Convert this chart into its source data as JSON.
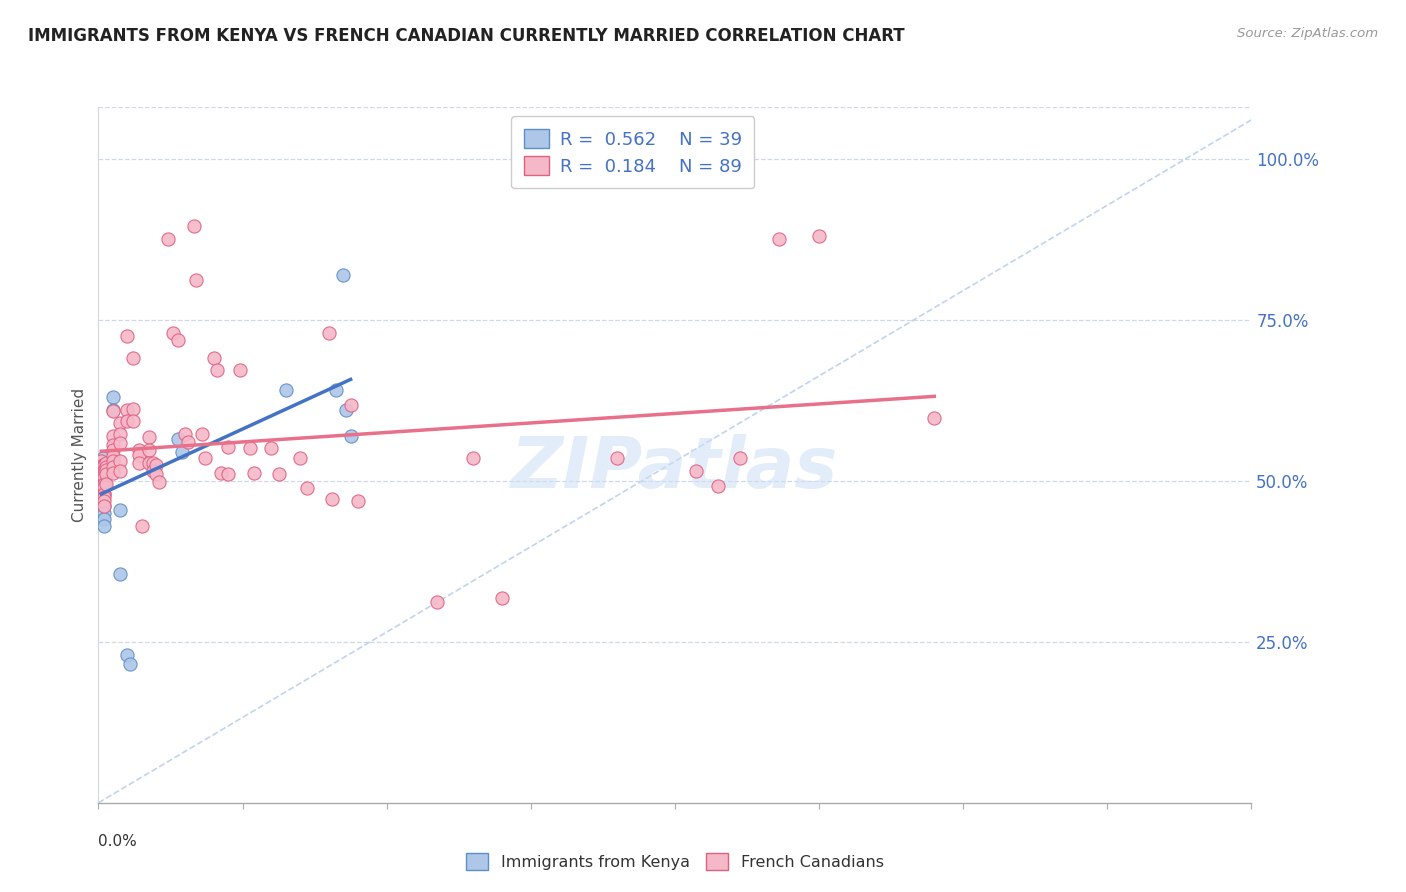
{
  "title": "IMMIGRANTS FROM KENYA VS FRENCH CANADIAN CURRENTLY MARRIED CORRELATION CHART",
  "source": "Source: ZipAtlas.com",
  "ylabel": "Currently Married",
  "ytick_labels": [
    "25.0%",
    "50.0%",
    "75.0%",
    "100.0%"
  ],
  "ytick_values": [
    0.25,
    0.5,
    0.75,
    1.0
  ],
  "xlim": [
    0.0,
    0.8
  ],
  "ylim": [
    0.0,
    1.08
  ],
  "kenya_color": "#aec6e8",
  "kenya_edge_color": "#5b8fc9",
  "french_color": "#f5b8c8",
  "french_edge_color": "#e06080",
  "kenya_line_color": "#4472c4",
  "french_line_color": "#e8708a",
  "diag_line_color": "#b8d0ec",
  "grid_color": "#d0d8e8",
  "background_color": "#ffffff",
  "watermark": "ZIPatlas",
  "bottom_legend_labels": [
    "Immigrants from Kenya",
    "French Canadians"
  ],
  "kenya_scatter": [
    [
      0.002,
      0.525
    ],
    [
      0.002,
      0.515
    ],
    [
      0.003,
      0.535
    ],
    [
      0.003,
      0.525
    ],
    [
      0.003,
      0.52
    ],
    [
      0.003,
      0.515
    ],
    [
      0.003,
      0.51
    ],
    [
      0.003,
      0.505
    ],
    [
      0.003,
      0.5
    ],
    [
      0.003,
      0.495
    ],
    [
      0.003,
      0.49
    ],
    [
      0.003,
      0.48
    ],
    [
      0.003,
      0.475
    ],
    [
      0.003,
      0.465
    ],
    [
      0.004,
      0.52
    ],
    [
      0.004,
      0.51
    ],
    [
      0.004,
      0.505
    ],
    [
      0.004,
      0.5
    ],
    [
      0.004,
      0.49
    ],
    [
      0.004,
      0.48
    ],
    [
      0.004,
      0.46
    ],
    [
      0.004,
      0.45
    ],
    [
      0.004,
      0.44
    ],
    [
      0.004,
      0.43
    ],
    [
      0.005,
      0.52
    ],
    [
      0.005,
      0.51
    ],
    [
      0.01,
      0.63
    ],
    [
      0.01,
      0.61
    ],
    [
      0.015,
      0.455
    ],
    [
      0.015,
      0.355
    ],
    [
      0.02,
      0.23
    ],
    [
      0.022,
      0.215
    ],
    [
      0.055,
      0.565
    ],
    [
      0.058,
      0.545
    ],
    [
      0.13,
      0.64
    ],
    [
      0.165,
      0.64
    ],
    [
      0.17,
      0.82
    ],
    [
      0.172,
      0.61
    ],
    [
      0.175,
      0.57
    ]
  ],
  "french_scatter": [
    [
      0.002,
      0.53
    ],
    [
      0.002,
      0.52
    ],
    [
      0.002,
      0.51
    ],
    [
      0.003,
      0.525
    ],
    [
      0.003,
      0.515
    ],
    [
      0.003,
      0.505
    ],
    [
      0.003,
      0.5
    ],
    [
      0.003,
      0.495
    ],
    [
      0.003,
      0.49
    ],
    [
      0.003,
      0.48
    ],
    [
      0.004,
      0.525
    ],
    [
      0.004,
      0.515
    ],
    [
      0.004,
      0.51
    ],
    [
      0.004,
      0.505
    ],
    [
      0.004,
      0.495
    ],
    [
      0.004,
      0.49
    ],
    [
      0.004,
      0.48
    ],
    [
      0.004,
      0.475
    ],
    [
      0.004,
      0.468
    ],
    [
      0.004,
      0.46
    ],
    [
      0.005,
      0.528
    ],
    [
      0.005,
      0.522
    ],
    [
      0.005,
      0.516
    ],
    [
      0.005,
      0.51
    ],
    [
      0.005,
      0.495
    ],
    [
      0.01,
      0.608
    ],
    [
      0.01,
      0.57
    ],
    [
      0.01,
      0.555
    ],
    [
      0.01,
      0.548
    ],
    [
      0.01,
      0.538
    ],
    [
      0.01,
      0.53
    ],
    [
      0.01,
      0.522
    ],
    [
      0.01,
      0.512
    ],
    [
      0.015,
      0.59
    ],
    [
      0.015,
      0.572
    ],
    [
      0.015,
      0.558
    ],
    [
      0.015,
      0.53
    ],
    [
      0.015,
      0.515
    ],
    [
      0.02,
      0.725
    ],
    [
      0.02,
      0.61
    ],
    [
      0.02,
      0.592
    ],
    [
      0.024,
      0.69
    ],
    [
      0.024,
      0.612
    ],
    [
      0.024,
      0.592
    ],
    [
      0.028,
      0.548
    ],
    [
      0.028,
      0.54
    ],
    [
      0.028,
      0.528
    ],
    [
      0.03,
      0.43
    ],
    [
      0.035,
      0.568
    ],
    [
      0.035,
      0.548
    ],
    [
      0.035,
      0.528
    ],
    [
      0.038,
      0.528
    ],
    [
      0.038,
      0.515
    ],
    [
      0.04,
      0.524
    ],
    [
      0.04,
      0.51
    ],
    [
      0.042,
      0.498
    ],
    [
      0.048,
      0.875
    ],
    [
      0.052,
      0.73
    ],
    [
      0.055,
      0.718
    ],
    [
      0.06,
      0.572
    ],
    [
      0.062,
      0.56
    ],
    [
      0.066,
      0.895
    ],
    [
      0.068,
      0.812
    ],
    [
      0.072,
      0.572
    ],
    [
      0.074,
      0.535
    ],
    [
      0.08,
      0.69
    ],
    [
      0.082,
      0.672
    ],
    [
      0.085,
      0.512
    ],
    [
      0.09,
      0.552
    ],
    [
      0.09,
      0.51
    ],
    [
      0.098,
      0.672
    ],
    [
      0.105,
      0.55
    ],
    [
      0.108,
      0.512
    ],
    [
      0.12,
      0.55
    ],
    [
      0.125,
      0.51
    ],
    [
      0.14,
      0.535
    ],
    [
      0.145,
      0.488
    ],
    [
      0.16,
      0.73
    ],
    [
      0.162,
      0.472
    ],
    [
      0.175,
      0.618
    ],
    [
      0.18,
      0.468
    ],
    [
      0.235,
      0.312
    ],
    [
      0.26,
      0.535
    ],
    [
      0.28,
      0.318
    ],
    [
      0.36,
      0.535
    ],
    [
      0.415,
      0.515
    ],
    [
      0.43,
      0.492
    ],
    [
      0.445,
      0.535
    ],
    [
      0.472,
      0.875
    ],
    [
      0.5,
      0.88
    ],
    [
      0.58,
      0.598
    ]
  ]
}
